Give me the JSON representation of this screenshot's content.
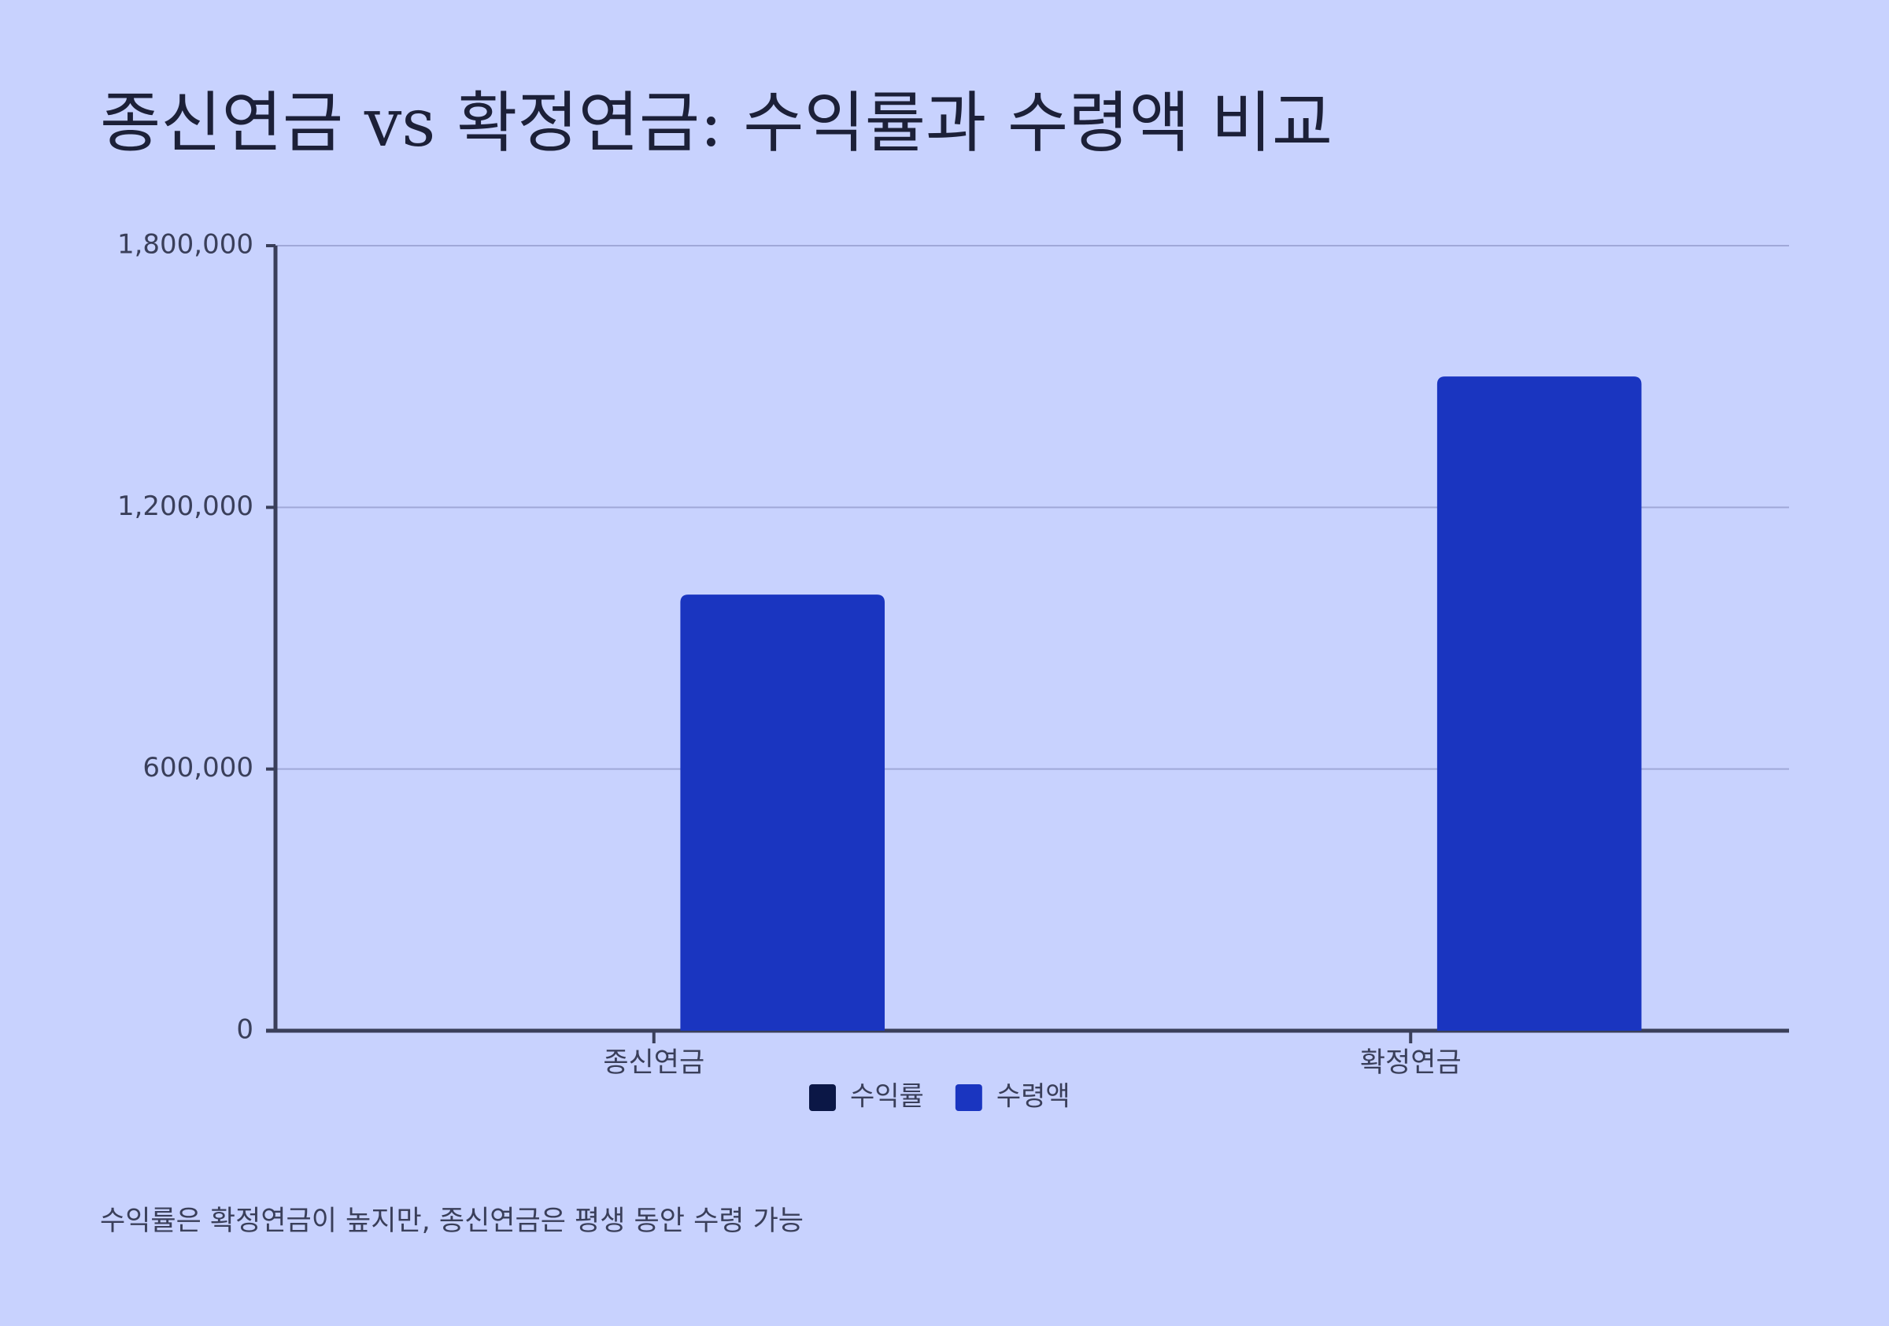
{
  "chart_data": {
    "type": "bar",
    "title": "종신연금 vs 확정연금: 수익률과 수령액 비교",
    "categories": [
      "종신연금",
      "확정연금"
    ],
    "series": [
      {
        "name": "수익률",
        "color": "#0b1746",
        "values": [
          3,
          4
        ]
      },
      {
        "name": "수령액",
        "color": "#1a35c0",
        "values": [
          1000000,
          1500000
        ]
      }
    ],
    "ylim": [
      0,
      1800000
    ],
    "yticks": [
      0,
      {
        "value": 600000,
        "label": "600,000"
      },
      {
        "value": 1200000,
        "label": "1,200,000"
      },
      {
        "value": 1800000,
        "label": "1,800,000"
      }
    ],
    "grid": true,
    "legend": "bottom",
    "note": "수익률은 확정연금이 높지만, 종신연금은 평생 동안 수령 가능"
  }
}
